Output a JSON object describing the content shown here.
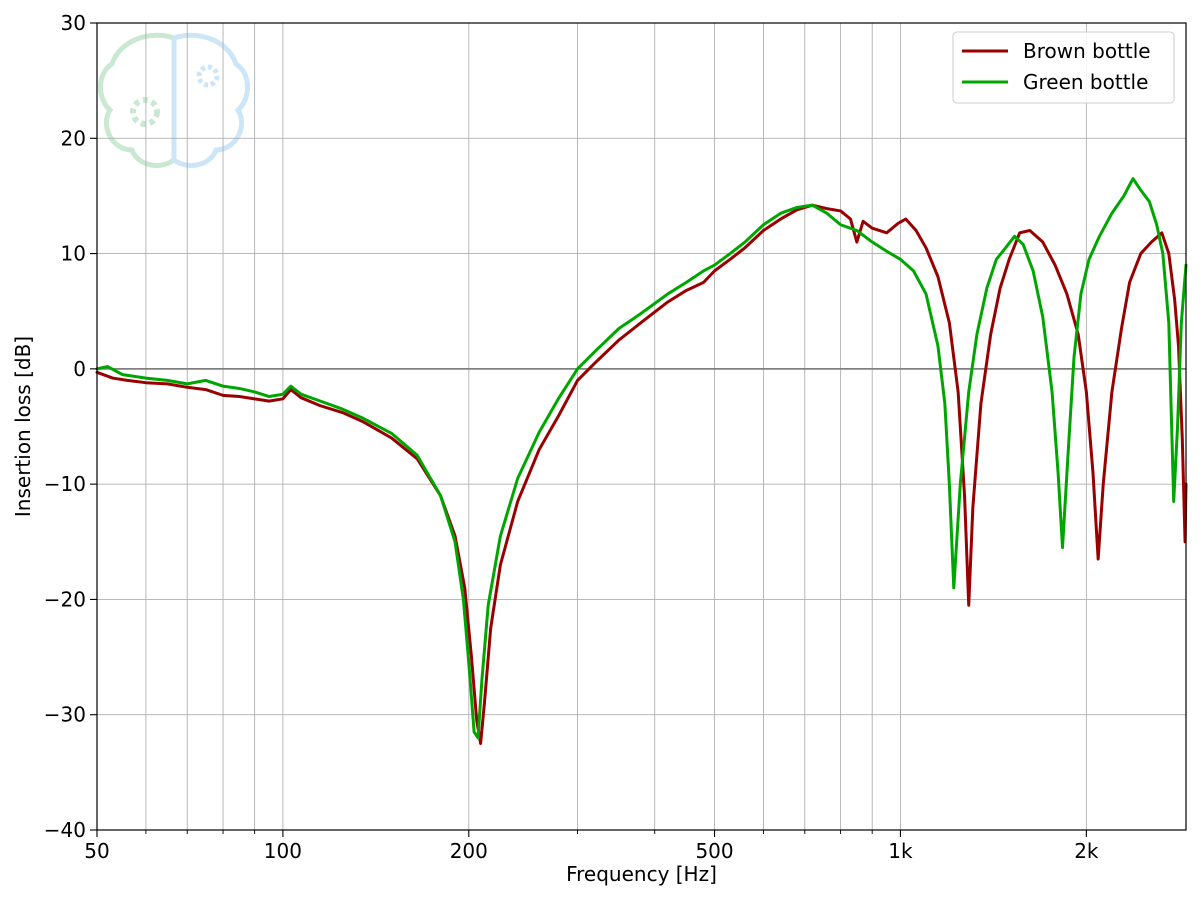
{
  "chart_data": {
    "type": "line",
    "title": "",
    "xlabel": "Frequency [Hz]",
    "ylabel": "Insertion loss [dB]",
    "xscale": "log",
    "xlim": [
      50,
      2900
    ],
    "ylim": [
      -40,
      30
    ],
    "grid": true,
    "legend_position": "top-right",
    "x_ticks": [
      {
        "value": 50,
        "label": "50"
      },
      {
        "value": 100,
        "label": "100"
      },
      {
        "value": 200,
        "label": "200"
      },
      {
        "value": 500,
        "label": "500"
      },
      {
        "value": 1000,
        "label": "1k"
      },
      {
        "value": 2000,
        "label": "2k"
      }
    ],
    "y_ticks": [
      {
        "value": 30,
        "label": "30"
      },
      {
        "value": 20,
        "label": "20"
      },
      {
        "value": 10,
        "label": "10"
      },
      {
        "value": 0,
        "label": "0"
      },
      {
        "value": -10,
        "label": "−10"
      },
      {
        "value": -20,
        "label": "−20"
      },
      {
        "value": -30,
        "label": "−30"
      },
      {
        "value": -40,
        "label": "−40"
      }
    ],
    "series": [
      {
        "name": "Brown bottle",
        "color": "#990000",
        "points": [
          [
            50,
            -0.3
          ],
          [
            53,
            -0.8
          ],
          [
            56,
            -1.0
          ],
          [
            60,
            -1.2
          ],
          [
            65,
            -1.3
          ],
          [
            70,
            -1.6
          ],
          [
            75,
            -1.8
          ],
          [
            80,
            -2.3
          ],
          [
            85,
            -2.4
          ],
          [
            90,
            -2.6
          ],
          [
            95,
            -2.8
          ],
          [
            100,
            -2.6
          ],
          [
            103,
            -1.8
          ],
          [
            107,
            -2.5
          ],
          [
            115,
            -3.2
          ],
          [
            125,
            -3.8
          ],
          [
            135,
            -4.6
          ],
          [
            150,
            -6.0
          ],
          [
            165,
            -7.8
          ],
          [
            180,
            -11.0
          ],
          [
            190,
            -14.5
          ],
          [
            197,
            -19.0
          ],
          [
            202,
            -25.0
          ],
          [
            206,
            -30.5
          ],
          [
            209,
            -32.5
          ],
          [
            212,
            -29.0
          ],
          [
            217,
            -22.5
          ],
          [
            225,
            -17.0
          ],
          [
            240,
            -11.5
          ],
          [
            260,
            -7.0
          ],
          [
            280,
            -4.0
          ],
          [
            300,
            -1.0
          ],
          [
            320,
            0.5
          ],
          [
            350,
            2.5
          ],
          [
            380,
            4.0
          ],
          [
            420,
            5.8
          ],
          [
            450,
            6.8
          ],
          [
            480,
            7.5
          ],
          [
            500,
            8.5
          ],
          [
            530,
            9.5
          ],
          [
            560,
            10.5
          ],
          [
            600,
            12.0
          ],
          [
            640,
            13.0
          ],
          [
            680,
            13.8
          ],
          [
            720,
            14.2
          ],
          [
            760,
            13.9
          ],
          [
            800,
            13.7
          ],
          [
            830,
            13.0
          ],
          [
            850,
            11.0
          ],
          [
            870,
            12.8
          ],
          [
            900,
            12.2
          ],
          [
            950,
            11.8
          ],
          [
            990,
            12.6
          ],
          [
            1020,
            13.0
          ],
          [
            1060,
            12.0
          ],
          [
            1100,
            10.5
          ],
          [
            1150,
            8.0
          ],
          [
            1200,
            4.0
          ],
          [
            1240,
            -2.0
          ],
          [
            1270,
            -11.0
          ],
          [
            1290,
            -20.5
          ],
          [
            1310,
            -12.0
          ],
          [
            1350,
            -3.0
          ],
          [
            1400,
            3.0
          ],
          [
            1450,
            7.0
          ],
          [
            1500,
            9.5
          ],
          [
            1560,
            11.8
          ],
          [
            1620,
            12.0
          ],
          [
            1700,
            11.0
          ],
          [
            1780,
            9.0
          ],
          [
            1860,
            6.5
          ],
          [
            1940,
            3.0
          ],
          [
            2000,
            -2.0
          ],
          [
            2050,
            -9.0
          ],
          [
            2090,
            -16.5
          ],
          [
            2130,
            -10.0
          ],
          [
            2200,
            -2.0
          ],
          [
            2280,
            3.5
          ],
          [
            2350,
            7.5
          ],
          [
            2450,
            10.0
          ],
          [
            2550,
            11.0
          ],
          [
            2650,
            11.8
          ],
          [
            2720,
            10.0
          ],
          [
            2780,
            6.0
          ],
          [
            2820,
            2.0
          ],
          [
            2860,
            -6.0
          ],
          [
            2890,
            -15.0
          ],
          [
            2900,
            -10.0
          ]
        ]
      },
      {
        "name": "Green bottle",
        "color": "#00a600",
        "points": [
          [
            50,
            0.0
          ],
          [
            52,
            0.2
          ],
          [
            55,
            -0.5
          ],
          [
            60,
            -0.8
          ],
          [
            65,
            -1.0
          ],
          [
            70,
            -1.3
          ],
          [
            75,
            -1.0
          ],
          [
            80,
            -1.5
          ],
          [
            85,
            -1.7
          ],
          [
            90,
            -2.0
          ],
          [
            95,
            -2.4
          ],
          [
            100,
            -2.2
          ],
          [
            103,
            -1.5
          ],
          [
            107,
            -2.2
          ],
          [
            115,
            -2.8
          ],
          [
            125,
            -3.5
          ],
          [
            135,
            -4.3
          ],
          [
            150,
            -5.6
          ],
          [
            165,
            -7.5
          ],
          [
            180,
            -11.0
          ],
          [
            190,
            -15.0
          ],
          [
            196,
            -20.0
          ],
          [
            200,
            -25.5
          ],
          [
            204,
            -31.5
          ],
          [
            207,
            -32.0
          ],
          [
            210,
            -27.0
          ],
          [
            215,
            -20.5
          ],
          [
            225,
            -14.5
          ],
          [
            240,
            -9.5
          ],
          [
            260,
            -5.5
          ],
          [
            280,
            -2.5
          ],
          [
            300,
            0.0
          ],
          [
            320,
            1.5
          ],
          [
            350,
            3.5
          ],
          [
            380,
            4.8
          ],
          [
            420,
            6.5
          ],
          [
            450,
            7.5
          ],
          [
            480,
            8.5
          ],
          [
            500,
            9.0
          ],
          [
            530,
            10.0
          ],
          [
            560,
            11.0
          ],
          [
            600,
            12.5
          ],
          [
            640,
            13.5
          ],
          [
            680,
            14.0
          ],
          [
            720,
            14.2
          ],
          [
            760,
            13.5
          ],
          [
            800,
            12.5
          ],
          [
            850,
            12.0
          ],
          [
            900,
            11.0
          ],
          [
            950,
            10.2
          ],
          [
            1000,
            9.5
          ],
          [
            1050,
            8.5
          ],
          [
            1100,
            6.5
          ],
          [
            1150,
            2.0
          ],
          [
            1180,
            -3.0
          ],
          [
            1200,
            -10.0
          ],
          [
            1220,
            -19.0
          ],
          [
            1250,
            -10.0
          ],
          [
            1290,
            -2.0
          ],
          [
            1330,
            3.0
          ],
          [
            1380,
            7.0
          ],
          [
            1430,
            9.5
          ],
          [
            1480,
            10.5
          ],
          [
            1530,
            11.5
          ],
          [
            1580,
            10.8
          ],
          [
            1640,
            8.5
          ],
          [
            1700,
            4.5
          ],
          [
            1760,
            -2.0
          ],
          [
            1800,
            -9.0
          ],
          [
            1830,
            -15.5
          ],
          [
            1870,
            -7.0
          ],
          [
            1910,
            1.0
          ],
          [
            1960,
            6.5
          ],
          [
            2020,
            9.5
          ],
          [
            2100,
            11.5
          ],
          [
            2200,
            13.5
          ],
          [
            2300,
            15.0
          ],
          [
            2380,
            16.5
          ],
          [
            2450,
            15.5
          ],
          [
            2530,
            14.5
          ],
          [
            2600,
            12.5
          ],
          [
            2660,
            10.0
          ],
          [
            2720,
            4.0
          ],
          [
            2770,
            -11.5
          ],
          [
            2810,
            -5.0
          ],
          [
            2850,
            4.0
          ],
          [
            2900,
            9.0
          ]
        ]
      }
    ]
  }
}
